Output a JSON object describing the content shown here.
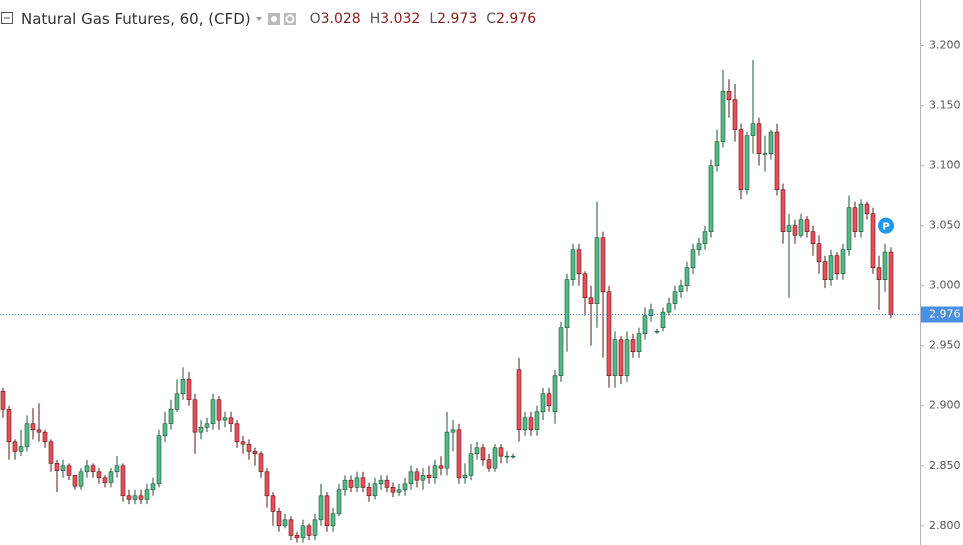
{
  "chart_data": {
    "type": "candlestick",
    "title": "Natural Gas Futures, 60, (CFD)",
    "ohlc_prefixes": [
      "O",
      "H",
      "L",
      "C"
    ],
    "up_color": "#53b987",
    "down_color": "#eb4d5c",
    "up_border": "#225437",
    "down_border": "#5b1a13",
    "open": [
      2.912,
      2.897,
      2.87,
      2.862,
      2.866,
      2.885,
      2.88,
      2.878,
      2.87,
      2.852,
      2.846,
      2.85,
      2.842,
      2.833,
      2.845,
      2.85,
      2.845,
      2.84,
      2.836,
      2.845,
      2.85,
      2.825,
      2.822,
      2.825,
      2.822,
      2.83,
      2.835,
      2.875,
      2.885,
      2.897,
      2.91,
      2.922,
      2.905,
      2.878,
      2.882,
      2.885,
      2.905,
      2.888,
      2.89,
      2.885,
      2.87,
      2.868,
      2.862,
      2.86,
      2.845,
      2.825,
      2.812,
      2.8,
      2.805,
      2.792,
      2.79,
      2.8,
      2.792,
      2.805,
      2.825,
      2.8,
      2.81,
      2.83,
      2.838,
      2.832,
      2.84,
      2.832,
      2.825,
      2.835,
      2.838,
      2.832,
      2.828,
      2.83,
      2.835,
      2.845,
      2.838,
      2.842,
      2.84,
      2.85,
      2.848,
      2.878,
      2.88,
      2.84,
      2.842,
      2.86,
      2.865,
      2.855,
      2.848,
      2.865,
      2.858,
      2.858,
      2.93,
      2.88,
      2.89,
      2.88,
      2.895,
      2.91,
      2.895,
      2.925,
      2.965,
      3.005,
      3.03,
      3.01,
      2.99,
      2.985,
      3.04,
      2.995,
      2.925,
      2.955,
      2.925,
      2.955,
      2.945,
      2.96,
      2.975,
      2.962,
      2.965,
      2.978,
      2.985,
      2.995,
      3.0,
      3.015,
      3.03,
      3.035,
      3.045,
      3.1,
      3.12,
      3.162,
      3.155,
      3.13,
      3.08,
      3.125,
      3.135,
      3.11,
      3.11,
      3.128,
      3.08,
      3.045,
      3.05,
      3.042,
      3.055,
      3.045,
      3.035,
      3.02,
      3.005,
      3.025,
      3.01,
      3.03,
      3.065,
      3.045,
      3.068,
      3.06,
      3.015,
      3.005,
      3.028
    ],
    "high": [
      2.915,
      2.9,
      2.872,
      2.88,
      2.892,
      2.898,
      2.902,
      2.88,
      2.872,
      2.855,
      2.855,
      2.852,
      2.842,
      2.848,
      2.855,
      2.852,
      2.848,
      2.842,
      2.848,
      2.858,
      2.852,
      2.83,
      2.83,
      2.83,
      2.835,
      2.84,
      2.88,
      2.895,
      2.905,
      2.922,
      2.932,
      2.928,
      2.91,
      2.888,
      2.89,
      2.91,
      2.908,
      2.895,
      2.895,
      2.888,
      2.875,
      2.872,
      2.865,
      2.862,
      2.848,
      2.828,
      2.815,
      2.81,
      2.808,
      2.795,
      2.805,
      2.802,
      2.81,
      2.835,
      2.828,
      2.815,
      2.835,
      2.842,
      2.842,
      2.845,
      2.845,
      2.836,
      2.84,
      2.842,
      2.842,
      2.836,
      2.835,
      2.84,
      2.85,
      2.848,
      2.848,
      2.85,
      2.855,
      2.858,
      2.895,
      2.888,
      2.885,
      2.852,
      2.868,
      2.87,
      2.868,
      2.86,
      2.868,
      2.868,
      2.862,
      2.86,
      2.94,
      2.895,
      2.895,
      2.9,
      2.915,
      2.915,
      2.93,
      2.97,
      3.01,
      3.035,
      3.035,
      3.012,
      3.0,
      3.07,
      3.045,
      3.0,
      2.962,
      2.958,
      2.962,
      2.96,
      2.965,
      2.982,
      2.985,
      2.964,
      2.982,
      2.99,
      3.0,
      3.005,
      3.02,
      3.035,
      3.04,
      3.05,
      3.105,
      3.13,
      3.18,
      3.172,
      3.168,
      3.135,
      3.128,
      3.188,
      3.14,
      3.125,
      3.13,
      3.135,
      3.085,
      3.06,
      3.055,
      3.06,
      3.058,
      3.05,
      3.042,
      3.025,
      3.03,
      3.028,
      3.035,
      3.075,
      3.07,
      3.072,
      3.07,
      3.065,
      3.025,
      3.035,
      3.032
    ],
    "low": [
      2.89,
      2.855,
      2.855,
      2.858,
      2.862,
      2.872,
      2.87,
      2.865,
      2.845,
      2.828,
      2.84,
      2.838,
      2.83,
      2.83,
      2.84,
      2.84,
      2.835,
      2.832,
      2.832,
      2.84,
      2.82,
      2.818,
      2.818,
      2.818,
      2.818,
      2.825,
      2.832,
      2.87,
      2.88,
      2.895,
      2.905,
      2.9,
      2.86,
      2.872,
      2.878,
      2.88,
      2.88,
      2.882,
      2.878,
      2.865,
      2.86,
      2.855,
      2.85,
      2.84,
      2.815,
      2.8,
      2.795,
      2.798,
      2.788,
      2.786,
      2.786,
      2.788,
      2.788,
      2.8,
      2.795,
      2.795,
      2.808,
      2.825,
      2.828,
      2.828,
      2.828,
      2.82,
      2.822,
      2.83,
      2.828,
      2.824,
      2.825,
      2.825,
      2.83,
      2.832,
      2.83,
      2.835,
      2.835,
      2.842,
      2.842,
      2.862,
      2.835,
      2.835,
      2.838,
      2.855,
      2.85,
      2.845,
      2.845,
      2.852,
      2.852,
      2.856,
      2.87,
      2.875,
      2.875,
      2.875,
      2.888,
      2.895,
      2.885,
      2.92,
      2.945,
      3.0,
      3.0,
      2.975,
      2.95,
      2.965,
      2.94,
      2.915,
      2.915,
      2.918,
      2.92,
      2.94,
      2.94,
      2.955,
      2.97,
      2.96,
      2.962,
      2.975,
      2.98,
      2.99,
      2.995,
      3.01,
      3.025,
      3.03,
      3.04,
      3.095,
      3.115,
      3.14,
      3.12,
      3.072,
      3.076,
      3.11,
      3.1,
      3.095,
      3.105,
      3.075,
      3.035,
      2.99,
      3.035,
      3.04,
      3.04,
      3.025,
      3.01,
      2.998,
      3.0,
      3.005,
      3.005,
      3.025,
      3.04,
      3.04,
      3.055,
      3.01,
      2.98,
      2.995,
      2.973
    ],
    "close": [
      2.897,
      2.87,
      2.862,
      2.866,
      2.885,
      2.88,
      2.878,
      2.87,
      2.852,
      2.846,
      2.85,
      2.842,
      2.833,
      2.845,
      2.85,
      2.845,
      2.84,
      2.836,
      2.845,
      2.85,
      2.825,
      2.822,
      2.825,
      2.822,
      2.83,
      2.835,
      2.875,
      2.885,
      2.897,
      2.91,
      2.922,
      2.905,
      2.878,
      2.882,
      2.885,
      2.905,
      2.888,
      2.89,
      2.885,
      2.87,
      2.868,
      2.862,
      2.86,
      2.845,
      2.825,
      2.812,
      2.8,
      2.805,
      2.792,
      2.79,
      2.8,
      2.792,
      2.805,
      2.825,
      2.8,
      2.81,
      2.83,
      2.838,
      2.832,
      2.84,
      2.832,
      2.825,
      2.835,
      2.838,
      2.832,
      2.828,
      2.83,
      2.835,
      2.845,
      2.838,
      2.842,
      2.84,
      2.85,
      2.848,
      2.878,
      2.88,
      2.84,
      2.842,
      2.86,
      2.865,
      2.855,
      2.848,
      2.865,
      2.858,
      2.858,
      2.858,
      2.88,
      2.89,
      2.88,
      2.895,
      2.91,
      2.9,
      2.925,
      2.965,
      3.005,
      3.03,
      3.01,
      2.99,
      2.985,
      3.04,
      2.995,
      2.925,
      2.955,
      2.925,
      2.955,
      2.945,
      2.96,
      2.975,
      2.98,
      2.962,
      2.978,
      2.985,
      2.995,
      3.0,
      3.015,
      3.03,
      3.035,
      3.045,
      3.1,
      3.12,
      3.162,
      3.155,
      3.13,
      3.08,
      3.125,
      3.135,
      3.11,
      3.11,
      3.128,
      3.08,
      3.045,
      3.05,
      3.042,
      3.055,
      3.045,
      3.035,
      3.02,
      3.005,
      3.025,
      3.01,
      3.03,
      3.065,
      3.045,
      3.068,
      3.06,
      3.015,
      3.005,
      3.028,
      2.976
    ],
    "ylim": [
      2.784,
      3.238
    ],
    "yticks": [
      {
        "value": 2.8,
        "label": "2.800"
      },
      {
        "value": 2.85,
        "label": "2.850"
      },
      {
        "value": 2.9,
        "label": "2.900"
      },
      {
        "value": 2.95,
        "label": "2.950"
      },
      {
        "value": 3.0,
        "label": "3.000"
      },
      {
        "value": 3.05,
        "label": "3.050"
      },
      {
        "value": 3.1,
        "label": "3.100"
      },
      {
        "value": 3.15,
        "label": "3.150"
      },
      {
        "value": 3.2,
        "label": "3.200"
      }
    ],
    "price_line_color": "#4a8fe0",
    "marker": {
      "label": "P",
      "value": 3.05
    }
  }
}
